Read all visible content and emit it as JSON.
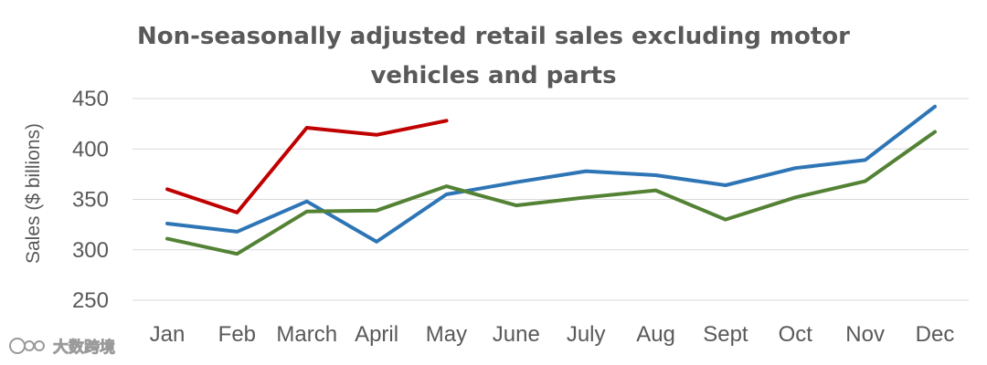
{
  "chart_data": {
    "type": "line",
    "title_lines": [
      "Non-seasonally adjusted retail sales excluding motor",
      "vehicles and parts"
    ],
    "ylabel": "Sales ($ billions)",
    "xlabel": "",
    "categories": [
      "Jan",
      "Feb",
      "March",
      "April",
      "May",
      "June",
      "July",
      "Aug",
      "Sept",
      "Oct",
      "Nov",
      "Dec"
    ],
    "yticks": [
      250,
      300,
      350,
      400,
      450
    ],
    "ylim": [
      250,
      450
    ],
    "grid": true,
    "legend": "none",
    "series": [
      {
        "color": "#c00000",
        "values": [
          360,
          337,
          421,
          414,
          428,
          null,
          null,
          null,
          null,
          null,
          null,
          null
        ]
      },
      {
        "color": "#2e75b6",
        "values": [
          326,
          318,
          348,
          308,
          355,
          367,
          378,
          374,
          364,
          381,
          389,
          442
        ]
      },
      {
        "color": "#548235",
        "values": [
          311,
          296,
          338,
          339,
          363,
          344,
          352,
          359,
          330,
          352,
          368,
          417
        ]
      }
    ]
  },
  "watermark": {
    "text": "大数跨境",
    "icon": "watermark-logo-icon"
  }
}
